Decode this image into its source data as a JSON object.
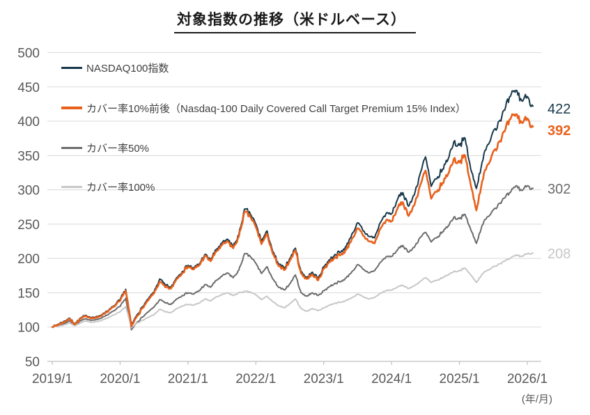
{
  "title": "対象指数の推移（米ドルベース）",
  "chart_data": {
    "type": "line",
    "title": "対象指数の推移（米ドルベース）",
    "xlabel": "(年/月)",
    "ylabel": "",
    "x_start": "2019/1",
    "x_frequency": "monthly",
    "x_ticks": [
      "2019/1",
      "2020/1",
      "2021/1",
      "2022/1",
      "2023/1",
      "2024/1",
      "2025/1",
      "2026/1"
    ],
    "y_ticks": [
      "50",
      "100",
      "150",
      "200",
      "250",
      "300",
      "350",
      "400",
      "450",
      "500"
    ],
    "ylim": [
      50,
      500
    ],
    "grid": "horizontal",
    "legend_position": "top-left-inside",
    "series": [
      {
        "name": "NASDAQ100指数",
        "color": "#17384a",
        "end_label": "422",
        "end_label_bold": false,
        "values": [
          100,
          104,
          108,
          113,
          105,
          113,
          117,
          114,
          115,
          120,
          125,
          131,
          140,
          155,
          103,
          118,
          130,
          141,
          151,
          170,
          161,
          158,
          172,
          181,
          190,
          186,
          192,
          206,
          198,
          213,
          222,
          228,
          218,
          235,
          272,
          265,
          250,
          225,
          240,
          210,
          192,
          186,
          200,
          215,
          181,
          172,
          180,
          171,
          188,
          198,
          206,
          209,
          218,
          236,
          252,
          240,
          232,
          230,
          252,
          265,
          265,
          285,
          296,
          276,
          292,
          322,
          348,
          305,
          316,
          330,
          345,
          370,
          365,
          375,
          330,
          302,
          340,
          366,
          386,
          400,
          416,
          436,
          445,
          430,
          436,
          422
        ]
      },
      {
        "name": "カバー率10%前後（Nasdaq-100 Daily Covered Call Target Premium 15% Index）",
        "color": "#e8611c",
        "end_label": "392",
        "end_label_bold": true,
        "values": [
          100,
          103,
          107,
          112,
          104,
          112,
          116,
          113,
          114,
          119,
          124,
          130,
          138,
          153,
          101,
          116,
          128,
          139,
          149,
          166,
          158,
          156,
          170,
          179,
          188,
          184,
          190,
          204,
          196,
          210,
          219,
          225,
          215,
          232,
          268,
          261,
          246,
          221,
          236,
          207,
          189,
          183,
          197,
          212,
          178,
          170,
          177,
          168,
          185,
          195,
          202,
          205,
          213,
          229,
          244,
          233,
          225,
          222,
          243,
          255,
          254,
          272,
          282,
          262,
          277,
          305,
          328,
          287,
          297,
          310,
          323,
          345,
          340,
          350,
          307,
          270,
          312,
          337,
          356,
          370,
          385,
          403,
          410,
          398,
          404,
          392
        ]
      },
      {
        "name": "カバー率50%",
        "color": "#6b6b6b",
        "end_label": "302",
        "end_label_bold": false,
        "values": [
          100,
          102,
          105,
          109,
          103,
          109,
          112,
          110,
          111,
          115,
          119,
          124,
          130,
          142,
          96,
          107,
          115,
          122,
          129,
          140,
          135,
          133,
          141,
          146,
          150,
          148,
          153,
          162,
          158,
          168,
          174,
          179,
          172,
          183,
          207,
          203,
          193,
          178,
          188,
          170,
          158,
          154,
          163,
          176,
          150,
          145,
          150,
          146,
          153,
          159,
          164,
          166,
          172,
          181,
          191,
          184,
          179,
          182,
          194,
          202,
          203,
          212,
          219,
          209,
          216,
          230,
          238,
          224,
          230,
          239,
          247,
          260,
          258,
          264,
          242,
          222,
          248,
          261,
          271,
          280,
          288,
          296,
          306,
          299,
          306,
          302
        ]
      },
      {
        "name": "カバー率100%",
        "color": "#c7c7c7",
        "end_label": "208",
        "end_label_bold": false,
        "values": [
          100,
          101,
          103,
          106,
          102,
          106,
          109,
          107,
          108,
          111,
          114,
          118,
          122,
          130,
          99,
          106,
          110,
          114,
          118,
          126,
          122,
          121,
          127,
          131,
          133,
          132,
          135,
          141,
          138,
          144,
          147,
          150,
          146,
          150,
          152,
          151,
          147,
          140,
          145,
          137,
          131,
          128,
          134,
          141,
          127,
          123,
          127,
          124,
          128,
          132,
          135,
          136,
          139,
          143,
          148,
          144,
          141,
          143,
          149,
          153,
          154,
          158,
          161,
          156,
          160,
          166,
          172,
          165,
          168,
          172,
          176,
          181,
          182,
          186,
          176,
          165,
          177,
          183,
          188,
          192,
          196,
          200,
          205,
          203,
          207,
          208
        ]
      }
    ]
  }
}
